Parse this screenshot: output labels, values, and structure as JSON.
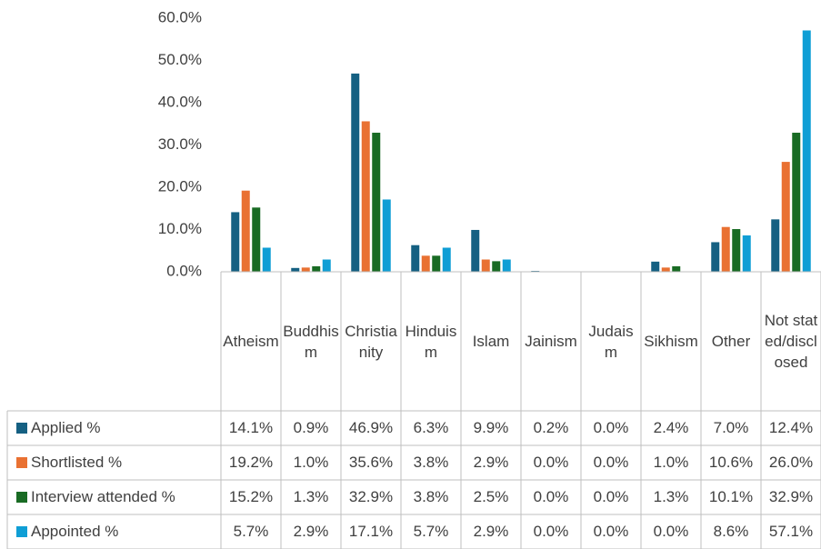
{
  "chart_data": {
    "type": "bar",
    "categories": [
      "Atheism",
      "Buddhism",
      "Christianity",
      "Hinduism",
      "Islam",
      "Jainism",
      "Judaism",
      "Sikhism",
      "Other",
      "Not stated/disclosed"
    ],
    "series": [
      {
        "name": "Applied %",
        "color": "#156082",
        "values": [
          14.1,
          0.9,
          46.9,
          6.3,
          9.9,
          0.2,
          0.0,
          2.4,
          7.0,
          12.4
        ],
        "value_labels": [
          "14.1%",
          "0.9%",
          "46.9%",
          "6.3%",
          "9.9%",
          "0.2%",
          "0.0%",
          "2.4%",
          "7.0%",
          "12.4%"
        ]
      },
      {
        "name": "Shortlisted %",
        "color": "#e97132",
        "values": [
          19.2,
          1.0,
          35.6,
          3.8,
          2.9,
          0.0,
          0.0,
          1.0,
          10.6,
          26.0
        ],
        "value_labels": [
          "19.2%",
          "1.0%",
          "35.6%",
          "3.8%",
          "2.9%",
          "0.0%",
          "0.0%",
          "1.0%",
          "10.6%",
          "26.0%"
        ]
      },
      {
        "name": "Interview attended %",
        "color": "#196b24",
        "values": [
          15.2,
          1.3,
          32.9,
          3.8,
          2.5,
          0.0,
          0.0,
          1.3,
          10.1,
          32.9
        ],
        "value_labels": [
          "15.2%",
          "1.3%",
          "32.9%",
          "3.8%",
          "2.5%",
          "0.0%",
          "0.0%",
          "1.3%",
          "10.1%",
          "32.9%"
        ]
      },
      {
        "name": "Appointed %",
        "color": "#0f9ed5",
        "values": [
          5.7,
          2.9,
          17.1,
          5.7,
          2.9,
          0.0,
          0.0,
          0.0,
          8.6,
          57.1
        ],
        "value_labels": [
          "5.7%",
          "2.9%",
          "17.1%",
          "5.7%",
          "2.9%",
          "0.0%",
          "0.0%",
          "0.0%",
          "8.6%",
          "57.1%"
        ]
      }
    ],
    "ylim": [
      0,
      60
    ],
    "yticks": [
      {
        "value": 0,
        "label": "0.0%"
      },
      {
        "value": 10,
        "label": "10.0%"
      },
      {
        "value": 20,
        "label": "20.0%"
      },
      {
        "value": 30,
        "label": "30.0%"
      },
      {
        "value": 40,
        "label": "40.0%"
      },
      {
        "value": 50,
        "label": "50.0%"
      },
      {
        "value": 60,
        "label": "60.0%"
      }
    ],
    "grid": false
  }
}
